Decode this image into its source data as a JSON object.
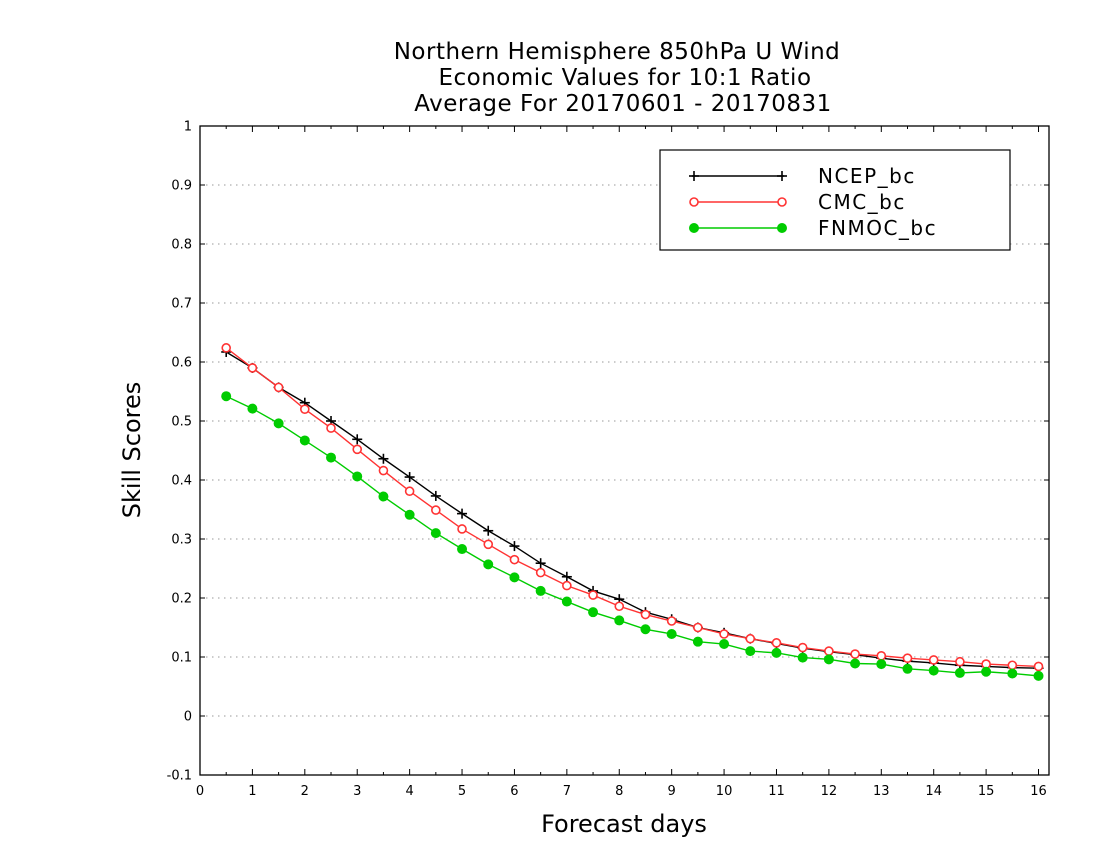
{
  "chart_data": {
    "type": "line",
    "title_lines": [
      "Northern Hemisphere 850hPa U Wind",
      "Economic Values for 10:1 Ratio",
      "Average For 20170601 - 20170831"
    ],
    "xlabel": "Forecast days",
    "ylabel": "Skill Scores",
    "xlim": [
      0,
      16.2
    ],
    "ylim": [
      -0.1,
      1
    ],
    "xticks": [
      "0",
      "1",
      "2",
      "3",
      "4",
      "5",
      "6",
      "7",
      "8",
      "9",
      "10",
      "11",
      "12",
      "13",
      "14",
      "15",
      "16"
    ],
    "yticks": [
      "-0.1",
      "0",
      "0.1",
      "0.2",
      "0.3",
      "0.4",
      "0.5",
      "0.6",
      "0.7",
      "0.8",
      "0.9",
      "1"
    ],
    "grid": "dotted-horizontal",
    "legend_position": "top-right",
    "x": [
      0.5,
      1,
      1.5,
      2,
      2.5,
      3,
      3.5,
      4,
      4.5,
      5,
      5.5,
      6,
      6.5,
      7,
      7.5,
      8,
      8.5,
      9,
      9.5,
      10,
      10.5,
      11,
      11.5,
      12,
      12.5,
      13,
      13.5,
      14,
      14.5,
      15,
      15.5,
      16
    ],
    "series": [
      {
        "name": "NCEP_bc",
        "color": "#000000",
        "marker": "plus",
        "values": [
          0.617,
          0.59,
          0.557,
          0.531,
          0.5,
          0.469,
          0.436,
          0.405,
          0.373,
          0.343,
          0.314,
          0.288,
          0.259,
          0.236,
          0.212,
          0.198,
          0.176,
          0.164,
          0.15,
          0.141,
          0.131,
          0.123,
          0.115,
          0.109,
          0.104,
          0.098,
          0.093,
          0.09,
          0.086,
          0.084,
          0.082,
          0.081
        ]
      },
      {
        "name": "CMC_bc",
        "color": "#ff3333",
        "marker": "open-circle",
        "values": [
          0.624,
          0.59,
          0.557,
          0.52,
          0.488,
          0.452,
          0.416,
          0.381,
          0.349,
          0.317,
          0.291,
          0.265,
          0.243,
          0.221,
          0.205,
          0.186,
          0.172,
          0.161,
          0.15,
          0.139,
          0.131,
          0.124,
          0.116,
          0.11,
          0.105,
          0.102,
          0.098,
          0.095,
          0.092,
          0.088,
          0.086,
          0.084
        ]
      },
      {
        "name": "FNMOC_bc",
        "color": "#00cc00",
        "marker": "filled-circle",
        "values": [
          0.542,
          0.521,
          0.496,
          0.467,
          0.438,
          0.406,
          0.372,
          0.341,
          0.31,
          0.283,
          0.257,
          0.235,
          0.212,
          0.194,
          0.176,
          0.162,
          0.147,
          0.139,
          0.126,
          0.122,
          0.11,
          0.107,
          0.099,
          0.096,
          0.089,
          0.088,
          0.08,
          0.077,
          0.073,
          0.075,
          0.072,
          0.068
        ]
      }
    ]
  }
}
